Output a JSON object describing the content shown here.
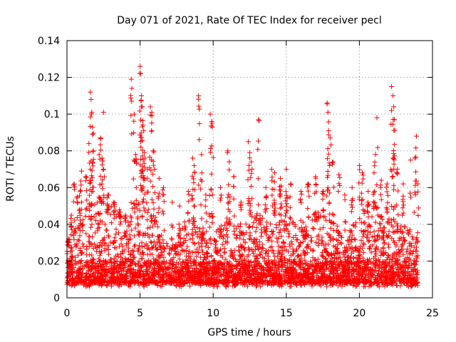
{
  "chart_data": {
    "type": "scatter",
    "title": "Day 071 of 2021, Rate Of TEC Index for receiver pecl",
    "xlabel": "GPS time / hours",
    "ylabel": "ROTI / TECUs",
    "xlim": [
      0,
      25
    ],
    "ylim": [
      0,
      0.14
    ],
    "xticks": [
      "0",
      "5",
      "10",
      "15",
      "20",
      "25"
    ],
    "xtick_values": [
      0,
      5,
      10,
      15,
      20,
      25
    ],
    "yticks": [
      "0",
      "0.02",
      "0.04",
      "0.06",
      "0.08",
      "0.1",
      "0.12",
      "0.14"
    ],
    "ytick_values": [
      0,
      0.02,
      0.04,
      0.06,
      0.08,
      0.1,
      0.12,
      0.14
    ],
    "grid": true,
    "marker": "+",
    "color": "#ff0000",
    "series": [
      {
        "name": "ROTI",
        "x_range_hours": [
          0,
          24
        ],
        "points": [
          [
            0.1,
            0.032
          ],
          [
            0.3,
            0.045
          ],
          [
            0.5,
            0.062
          ],
          [
            0.7,
            0.055
          ],
          [
            0.9,
            0.058
          ],
          [
            1.0,
            0.069
          ],
          [
            1.3,
            0.066
          ],
          [
            1.5,
            0.084
          ],
          [
            1.6,
            0.112
          ],
          [
            1.65,
            0.108
          ],
          [
            1.7,
            0.101
          ],
          [
            1.75,
            0.093
          ],
          [
            1.8,
            0.08
          ],
          [
            1.6,
            0.07
          ],
          [
            2.2,
            0.078
          ],
          [
            2.3,
            0.087
          ],
          [
            2.4,
            0.076
          ],
          [
            2.5,
            0.101
          ],
          [
            2.8,
            0.056
          ],
          [
            3.2,
            0.052
          ],
          [
            3.6,
            0.048
          ],
          [
            4.0,
            0.045
          ],
          [
            4.4,
            0.119
          ],
          [
            4.6,
            0.1
          ],
          [
            4.7,
            0.078
          ],
          [
            5.0,
            0.126
          ],
          [
            5.05,
            0.122
          ],
          [
            5.1,
            0.11
          ],
          [
            5.15,
            0.104
          ],
          [
            5.2,
            0.094
          ],
          [
            5.25,
            0.091
          ],
          [
            5.3,
            0.079
          ],
          [
            5.5,
            0.07
          ],
          [
            5.7,
            0.104
          ],
          [
            5.8,
            0.101
          ],
          [
            5.9,
            0.08
          ],
          [
            6.0,
            0.07
          ],
          [
            6.3,
            0.065
          ],
          [
            6.6,
            0.06
          ],
          [
            7.2,
            0.052
          ],
          [
            7.7,
            0.05
          ],
          [
            8.3,
            0.058
          ],
          [
            8.6,
            0.076
          ],
          [
            8.7,
            0.072
          ],
          [
            9.0,
            0.11
          ],
          [
            9.2,
            0.078
          ],
          [
            9.5,
            0.056
          ],
          [
            9.8,
            0.1
          ],
          [
            9.9,
            0.096
          ],
          [
            9.95,
            0.093
          ],
          [
            10.5,
            0.06
          ],
          [
            11.0,
            0.08
          ],
          [
            11.1,
            0.074
          ],
          [
            11.4,
            0.066
          ],
          [
            11.9,
            0.052
          ],
          [
            12.4,
            0.085
          ],
          [
            12.5,
            0.079
          ],
          [
            12.6,
            0.074
          ],
          [
            13.1,
            0.097
          ],
          [
            13.6,
            0.06
          ],
          [
            14.0,
            0.07
          ],
          [
            14.2,
            0.068
          ],
          [
            14.6,
            0.065
          ],
          [
            15.0,
            0.07
          ],
          [
            15.3,
            0.062
          ],
          [
            16.0,
            0.058
          ],
          [
            16.5,
            0.062
          ],
          [
            17.0,
            0.066
          ],
          [
            17.5,
            0.058
          ],
          [
            17.8,
            0.106
          ],
          [
            17.85,
            0.101
          ],
          [
            17.9,
            0.091
          ],
          [
            18.0,
            0.087
          ],
          [
            18.2,
            0.074
          ],
          [
            18.6,
            0.067
          ],
          [
            19.0,
            0.056
          ],
          [
            19.5,
            0.06
          ],
          [
            20.0,
            0.072
          ],
          [
            20.2,
            0.068
          ],
          [
            20.6,
            0.058
          ],
          [
            21.0,
            0.068
          ],
          [
            21.1,
            0.078
          ],
          [
            21.2,
            0.098
          ],
          [
            21.5,
            0.064
          ],
          [
            21.9,
            0.062
          ],
          [
            22.2,
            0.115
          ],
          [
            22.3,
            0.11
          ],
          [
            22.35,
            0.104
          ],
          [
            22.4,
            0.097
          ],
          [
            22.6,
            0.07
          ],
          [
            23.0,
            0.062
          ],
          [
            23.5,
            0.075
          ],
          [
            23.9,
            0.088
          ],
          [
            23.8,
            0.076
          ],
          [
            24.0,
            0.062
          ]
        ],
        "envelope": [
          [
            0,
            0.026
          ],
          [
            0.5,
            0.034
          ],
          [
            1,
            0.038
          ],
          [
            1.5,
            0.047
          ],
          [
            2,
            0.052
          ],
          [
            2.5,
            0.05
          ],
          [
            3,
            0.046
          ],
          [
            3.5,
            0.044
          ],
          [
            4,
            0.042
          ],
          [
            4.5,
            0.046
          ],
          [
            5,
            0.052
          ],
          [
            5.5,
            0.048
          ],
          [
            6,
            0.04
          ],
          [
            6.5,
            0.03
          ],
          [
            7,
            0.024
          ],
          [
            7.5,
            0.028
          ],
          [
            8,
            0.038
          ],
          [
            8.5,
            0.04
          ],
          [
            9,
            0.036
          ],
          [
            9.5,
            0.034
          ],
          [
            10,
            0.03
          ],
          [
            10.5,
            0.036
          ],
          [
            11,
            0.042
          ],
          [
            11.5,
            0.038
          ],
          [
            12,
            0.034
          ],
          [
            12.5,
            0.04
          ],
          [
            13,
            0.042
          ],
          [
            13.5,
            0.04
          ],
          [
            14,
            0.046
          ],
          [
            14.5,
            0.048
          ],
          [
            15,
            0.046
          ],
          [
            15.5,
            0.038
          ],
          [
            16,
            0.036
          ],
          [
            16.5,
            0.04
          ],
          [
            17,
            0.042
          ],
          [
            17.5,
            0.044
          ],
          [
            18,
            0.04
          ],
          [
            18.5,
            0.036
          ],
          [
            19,
            0.034
          ],
          [
            19.5,
            0.036
          ],
          [
            20,
            0.04
          ],
          [
            20.5,
            0.046
          ],
          [
            21,
            0.048
          ],
          [
            21.5,
            0.044
          ],
          [
            22,
            0.042
          ],
          [
            22.5,
            0.038
          ],
          [
            23,
            0.036
          ],
          [
            23.5,
            0.034
          ],
          [
            24,
            0.03
          ]
        ],
        "floor": 0.004
      }
    ]
  }
}
